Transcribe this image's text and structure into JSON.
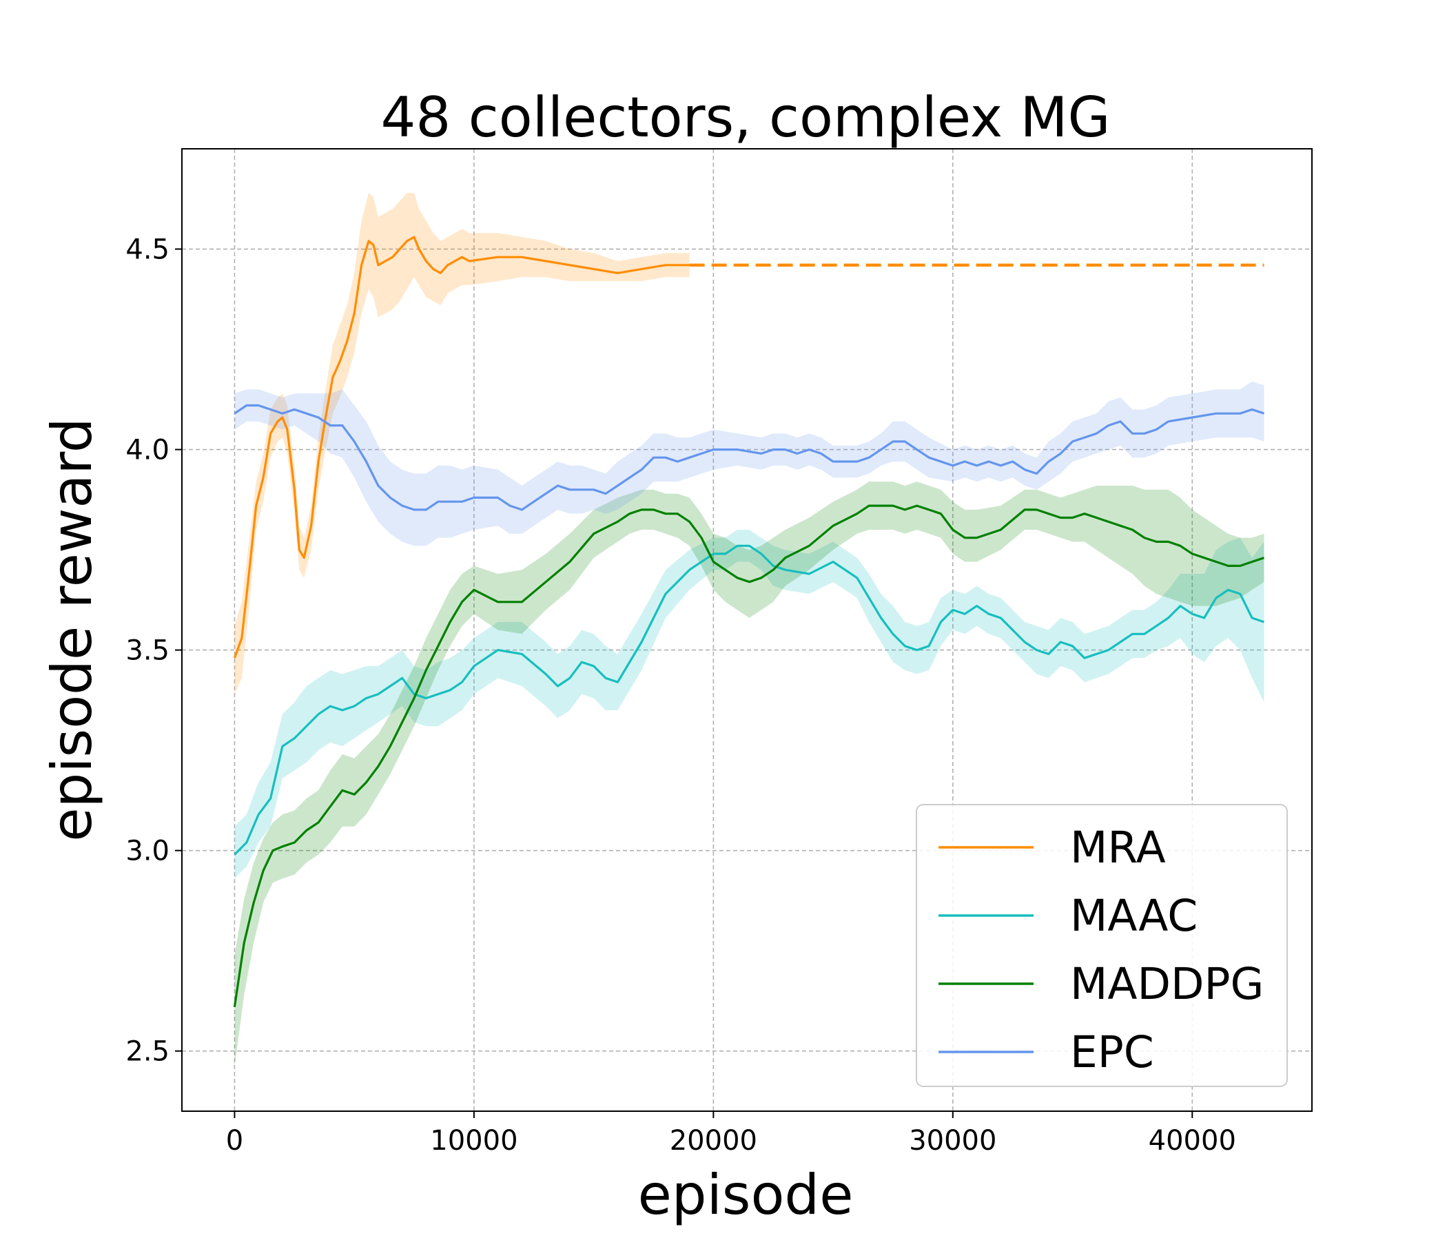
{
  "chart_data": {
    "type": "line",
    "title": "48 collectors, complex MG",
    "xlabel": "episode",
    "ylabel": "episode reward",
    "xlim": [
      -2200,
      45000
    ],
    "ylim": [
      2.35,
      4.75
    ],
    "xticks": [
      0,
      10000,
      20000,
      30000,
      40000
    ],
    "xtick_labels": [
      "0",
      "10000",
      "20000",
      "30000",
      "40000"
    ],
    "yticks": [
      2.5,
      3.0,
      3.5,
      4.0,
      4.5
    ],
    "ytick_labels": [
      "2.5",
      "3.0",
      "3.5",
      "4.0",
      "4.5"
    ],
    "grid": true,
    "legend_position": "lower-right",
    "series": [
      {
        "name": "MRA",
        "color": "#ff8c00",
        "x": [
          0,
          300,
          600,
          900,
          1200,
          1500,
          1800,
          2000,
          2200,
          2500,
          2700,
          2900,
          3200,
          3500,
          3800,
          4100,
          4400,
          4700,
          5000,
          5300,
          5600,
          5800,
          6000,
          6300,
          6600,
          6900,
          7200,
          7500,
          7700,
          8000,
          8300,
          8600,
          8900,
          9200,
          9500,
          9800,
          11000,
          12000,
          13000,
          14000,
          15000,
          16000,
          17000,
          18000,
          19000
        ],
        "y": [
          3.48,
          3.53,
          3.69,
          3.86,
          3.93,
          4.04,
          4.07,
          4.08,
          4.05,
          3.9,
          3.75,
          3.73,
          3.81,
          3.97,
          4.08,
          4.18,
          4.22,
          4.27,
          4.34,
          4.46,
          4.52,
          4.51,
          4.46,
          4.47,
          4.48,
          4.5,
          4.52,
          4.53,
          4.5,
          4.47,
          4.45,
          4.44,
          4.46,
          4.47,
          4.48,
          4.47,
          4.48,
          4.48,
          4.47,
          4.46,
          4.45,
          4.44,
          4.45,
          4.46,
          4.46
        ],
        "lower": [
          3.39,
          3.43,
          3.6,
          3.8,
          3.87,
          3.98,
          4.02,
          4.03,
          3.99,
          3.84,
          3.7,
          3.68,
          3.75,
          3.9,
          4.0,
          4.09,
          4.13,
          4.18,
          4.24,
          4.34,
          4.4,
          4.38,
          4.33,
          4.34,
          4.35,
          4.37,
          4.4,
          4.43,
          4.41,
          4.38,
          4.37,
          4.36,
          4.39,
          4.4,
          4.41,
          4.41,
          4.42,
          4.43,
          4.43,
          4.42,
          4.42,
          4.42,
          4.42,
          4.43,
          4.43
        ],
        "upper": [
          3.56,
          3.62,
          3.77,
          3.92,
          3.99,
          4.1,
          4.13,
          4.14,
          4.11,
          3.96,
          3.81,
          3.78,
          3.86,
          4.03,
          4.15,
          4.26,
          4.31,
          4.36,
          4.44,
          4.57,
          4.64,
          4.63,
          4.58,
          4.59,
          4.6,
          4.62,
          4.64,
          4.64,
          4.6,
          4.57,
          4.54,
          4.52,
          4.53,
          4.54,
          4.55,
          4.54,
          4.54,
          4.53,
          4.52,
          4.5,
          4.49,
          4.47,
          4.48,
          4.49,
          4.49
        ],
        "extension": {
          "x": [
            19000,
            43000
          ],
          "y": [
            4.46,
            4.46
          ],
          "style": "dashed"
        }
      },
      {
        "name": "MAAC",
        "color": "#17bebe",
        "x": [
          0,
          500,
          1000,
          1500,
          2000,
          2500,
          3000,
          3500,
          4000,
          4500,
          5000,
          5500,
          6000,
          6500,
          7000,
          7500,
          8000,
          8500,
          9000,
          9500,
          10000,
          11000,
          12000,
          13000,
          13500,
          14000,
          14500,
          15000,
          15500,
          16000,
          17000,
          18000,
          19000,
          20000,
          20500,
          21000,
          21500,
          22000,
          22500,
          23000,
          24000,
          25000,
          26000,
          26500,
          27000,
          27500,
          28000,
          28500,
          29000,
          29500,
          30000,
          30500,
          31000,
          31500,
          32000,
          32500,
          33000,
          33500,
          34000,
          34500,
          35000,
          35500,
          36000,
          36500,
          37000,
          37500,
          38000,
          38500,
          39000,
          39500,
          40000,
          40500,
          41000,
          41500,
          42000,
          42500,
          43000
        ],
        "y": [
          2.99,
          3.02,
          3.09,
          3.13,
          3.26,
          3.28,
          3.31,
          3.34,
          3.36,
          3.35,
          3.36,
          3.38,
          3.39,
          3.41,
          3.43,
          3.39,
          3.38,
          3.39,
          3.4,
          3.42,
          3.46,
          3.5,
          3.49,
          3.44,
          3.41,
          3.43,
          3.47,
          3.46,
          3.43,
          3.42,
          3.52,
          3.64,
          3.7,
          3.74,
          3.74,
          3.76,
          3.76,
          3.74,
          3.71,
          3.7,
          3.69,
          3.72,
          3.68,
          3.63,
          3.58,
          3.54,
          3.51,
          3.5,
          3.51,
          3.57,
          3.6,
          3.59,
          3.61,
          3.59,
          3.58,
          3.55,
          3.52,
          3.5,
          3.49,
          3.52,
          3.51,
          3.48,
          3.49,
          3.5,
          3.52,
          3.54,
          3.54,
          3.56,
          3.58,
          3.61,
          3.59,
          3.58,
          3.63,
          3.65,
          3.64,
          3.58,
          3.57
        ],
        "lower": [
          2.93,
          2.96,
          3.02,
          3.06,
          3.18,
          3.2,
          3.22,
          3.25,
          3.27,
          3.26,
          3.28,
          3.3,
          3.32,
          3.34,
          3.36,
          3.32,
          3.31,
          3.31,
          3.33,
          3.35,
          3.39,
          3.43,
          3.41,
          3.36,
          3.33,
          3.35,
          3.39,
          3.38,
          3.35,
          3.35,
          3.45,
          3.58,
          3.65,
          3.7,
          3.7,
          3.72,
          3.72,
          3.7,
          3.66,
          3.65,
          3.64,
          3.67,
          3.63,
          3.57,
          3.52,
          3.47,
          3.45,
          3.44,
          3.45,
          3.51,
          3.55,
          3.54,
          3.56,
          3.54,
          3.53,
          3.5,
          3.47,
          3.44,
          3.43,
          3.46,
          3.45,
          3.42,
          3.43,
          3.44,
          3.46,
          3.48,
          3.48,
          3.5,
          3.51,
          3.53,
          3.49,
          3.47,
          3.51,
          3.53,
          3.5,
          3.43,
          3.37
        ],
        "upper": [
          3.06,
          3.09,
          3.17,
          3.22,
          3.34,
          3.37,
          3.41,
          3.43,
          3.45,
          3.44,
          3.45,
          3.46,
          3.46,
          3.48,
          3.5,
          3.46,
          3.45,
          3.47,
          3.48,
          3.5,
          3.53,
          3.57,
          3.57,
          3.52,
          3.49,
          3.51,
          3.55,
          3.54,
          3.51,
          3.49,
          3.59,
          3.7,
          3.75,
          3.78,
          3.78,
          3.8,
          3.8,
          3.78,
          3.76,
          3.75,
          3.74,
          3.77,
          3.73,
          3.69,
          3.64,
          3.61,
          3.57,
          3.56,
          3.57,
          3.63,
          3.65,
          3.64,
          3.66,
          3.64,
          3.63,
          3.6,
          3.57,
          3.56,
          3.55,
          3.58,
          3.57,
          3.54,
          3.55,
          3.56,
          3.58,
          3.6,
          3.6,
          3.62,
          3.65,
          3.69,
          3.69,
          3.69,
          3.75,
          3.77,
          3.78,
          3.73,
          3.77
        ]
      },
      {
        "name": "MADDPG",
        "color": "#008000",
        "x": [
          0,
          400,
          800,
          1200,
          1600,
          2000,
          2500,
          3000,
          3500,
          4000,
          4500,
          5000,
          5500,
          6000,
          6500,
          7000,
          7500,
          8000,
          8500,
          9000,
          9500,
          10000,
          11000,
          12000,
          13000,
          14000,
          15000,
          16000,
          16500,
          17000,
          17500,
          18000,
          18500,
          19000,
          19500,
          20000,
          20500,
          21000,
          21500,
          22000,
          22500,
          23000,
          24000,
          25000,
          26000,
          26500,
          27000,
          27500,
          28000,
          28500,
          29000,
          29500,
          30000,
          30500,
          31000,
          32000,
          33000,
          33500,
          34000,
          34500,
          35000,
          35500,
          36000,
          37000,
          37500,
          38000,
          38500,
          39000,
          39500,
          40000,
          40500,
          41000,
          41500,
          42000,
          42500,
          43000
        ],
        "y": [
          2.61,
          2.77,
          2.87,
          2.95,
          3.0,
          3.01,
          3.02,
          3.05,
          3.07,
          3.11,
          3.15,
          3.14,
          3.17,
          3.21,
          3.26,
          3.32,
          3.38,
          3.45,
          3.51,
          3.57,
          3.62,
          3.65,
          3.62,
          3.62,
          3.67,
          3.72,
          3.79,
          3.82,
          3.84,
          3.85,
          3.85,
          3.84,
          3.84,
          3.82,
          3.78,
          3.72,
          3.7,
          3.68,
          3.67,
          3.68,
          3.7,
          3.73,
          3.76,
          3.81,
          3.84,
          3.86,
          3.86,
          3.86,
          3.85,
          3.86,
          3.85,
          3.84,
          3.8,
          3.78,
          3.78,
          3.8,
          3.85,
          3.85,
          3.84,
          3.83,
          3.83,
          3.84,
          3.83,
          3.81,
          3.8,
          3.78,
          3.77,
          3.77,
          3.76,
          3.74,
          3.73,
          3.72,
          3.71,
          3.71,
          3.72,
          3.73
        ],
        "lower": [
          2.46,
          2.64,
          2.77,
          2.87,
          2.92,
          2.93,
          2.94,
          2.97,
          2.99,
          3.02,
          3.06,
          3.06,
          3.09,
          3.14,
          3.19,
          3.25,
          3.31,
          3.38,
          3.45,
          3.51,
          3.56,
          3.59,
          3.55,
          3.54,
          3.6,
          3.65,
          3.73,
          3.77,
          3.79,
          3.8,
          3.8,
          3.79,
          3.78,
          3.76,
          3.71,
          3.65,
          3.62,
          3.6,
          3.58,
          3.6,
          3.62,
          3.66,
          3.7,
          3.75,
          3.79,
          3.8,
          3.8,
          3.8,
          3.79,
          3.8,
          3.79,
          3.78,
          3.74,
          3.72,
          3.72,
          3.75,
          3.8,
          3.8,
          3.79,
          3.78,
          3.77,
          3.77,
          3.75,
          3.71,
          3.69,
          3.66,
          3.64,
          3.63,
          3.62,
          3.61,
          3.61,
          3.61,
          3.62,
          3.63,
          3.65,
          3.67
        ],
        "upper": [
          2.74,
          2.88,
          2.97,
          3.03,
          3.07,
          3.09,
          3.1,
          3.13,
          3.15,
          3.2,
          3.24,
          3.23,
          3.26,
          3.29,
          3.34,
          3.4,
          3.46,
          3.53,
          3.59,
          3.65,
          3.69,
          3.71,
          3.69,
          3.7,
          3.74,
          3.79,
          3.85,
          3.88,
          3.89,
          3.9,
          3.9,
          3.89,
          3.89,
          3.88,
          3.84,
          3.79,
          3.78,
          3.76,
          3.75,
          3.76,
          3.78,
          3.8,
          3.83,
          3.87,
          3.9,
          3.92,
          3.92,
          3.92,
          3.91,
          3.92,
          3.91,
          3.9,
          3.87,
          3.85,
          3.85,
          3.86,
          3.9,
          3.9,
          3.89,
          3.88,
          3.89,
          3.9,
          3.91,
          3.91,
          3.91,
          3.9,
          3.9,
          3.9,
          3.88,
          3.85,
          3.83,
          3.81,
          3.79,
          3.78,
          3.78,
          3.79
        ]
      },
      {
        "name": "EPC",
        "color": "#6495ed",
        "x": [
          0,
          500,
          1000,
          1500,
          2000,
          2500,
          3000,
          3500,
          4000,
          4500,
          5000,
          5500,
          6000,
          6500,
          7000,
          7500,
          8000,
          8500,
          9000,
          9500,
          10000,
          11000,
          11500,
          12000,
          12500,
          13000,
          13500,
          14000,
          14500,
          15000,
          15500,
          16000,
          16500,
          17000,
          17500,
          18000,
          18500,
          19000,
          19500,
          20000,
          21000,
          22000,
          22500,
          23000,
          23500,
          24000,
          24500,
          25000,
          26000,
          26500,
          27000,
          27500,
          28000,
          28500,
          29000,
          30000,
          30500,
          31000,
          31500,
          32000,
          32500,
          33000,
          33500,
          34000,
          34500,
          35000,
          35500,
          36000,
          36500,
          37000,
          37500,
          38000,
          38500,
          39000,
          40000,
          41000,
          42000,
          42500,
          43000
        ],
        "y": [
          4.09,
          4.11,
          4.11,
          4.1,
          4.09,
          4.1,
          4.09,
          4.08,
          4.06,
          4.06,
          4.02,
          3.97,
          3.91,
          3.88,
          3.86,
          3.85,
          3.85,
          3.87,
          3.87,
          3.87,
          3.88,
          3.88,
          3.86,
          3.85,
          3.87,
          3.89,
          3.91,
          3.9,
          3.9,
          3.9,
          3.89,
          3.91,
          3.93,
          3.95,
          3.98,
          3.98,
          3.97,
          3.98,
          3.99,
          4.0,
          4.0,
          3.99,
          4.0,
          4.0,
          3.99,
          4.0,
          3.99,
          3.97,
          3.97,
          3.98,
          4.0,
          4.02,
          4.02,
          4.0,
          3.98,
          3.96,
          3.97,
          3.96,
          3.97,
          3.96,
          3.97,
          3.95,
          3.94,
          3.97,
          3.99,
          4.02,
          4.03,
          4.04,
          4.06,
          4.07,
          4.04,
          4.04,
          4.05,
          4.07,
          4.08,
          4.09,
          4.09,
          4.1,
          4.09
        ],
        "lower": [
          4.05,
          4.07,
          4.07,
          4.06,
          4.05,
          4.06,
          4.04,
          4.02,
          3.99,
          3.98,
          3.93,
          3.87,
          3.82,
          3.79,
          3.77,
          3.76,
          3.76,
          3.78,
          3.78,
          3.79,
          3.8,
          3.81,
          3.79,
          3.79,
          3.81,
          3.83,
          3.85,
          3.84,
          3.84,
          3.85,
          3.84,
          3.85,
          3.87,
          3.89,
          3.92,
          3.92,
          3.92,
          3.93,
          3.94,
          3.95,
          3.96,
          3.95,
          3.96,
          3.96,
          3.95,
          3.96,
          3.95,
          3.93,
          3.93,
          3.94,
          3.96,
          3.97,
          3.97,
          3.95,
          3.93,
          3.92,
          3.93,
          3.92,
          3.93,
          3.92,
          3.93,
          3.91,
          3.9,
          3.92,
          3.94,
          3.97,
          3.98,
          3.99,
          4.0,
          4.01,
          3.98,
          3.98,
          3.99,
          4.01,
          4.02,
          4.03,
          4.03,
          4.03,
          4.02
        ],
        "upper": [
          4.14,
          4.15,
          4.15,
          4.14,
          4.13,
          4.14,
          4.14,
          4.14,
          4.14,
          4.15,
          4.11,
          4.07,
          4.01,
          3.97,
          3.95,
          3.94,
          3.94,
          3.96,
          3.96,
          3.95,
          3.96,
          3.95,
          3.93,
          3.91,
          3.93,
          3.95,
          3.97,
          3.96,
          3.96,
          3.95,
          3.94,
          3.97,
          3.99,
          4.01,
          4.04,
          4.04,
          4.03,
          4.03,
          4.04,
          4.05,
          4.04,
          4.03,
          4.04,
          4.04,
          4.03,
          4.04,
          4.03,
          4.01,
          4.01,
          4.02,
          4.04,
          4.07,
          4.07,
          4.05,
          4.03,
          4.0,
          4.01,
          4.0,
          4.01,
          4.0,
          4.01,
          3.99,
          3.98,
          4.02,
          4.04,
          4.07,
          4.08,
          4.09,
          4.12,
          4.13,
          4.1,
          4.1,
          4.11,
          4.13,
          4.14,
          4.15,
          4.15,
          4.17,
          4.16
        ]
      }
    ]
  }
}
